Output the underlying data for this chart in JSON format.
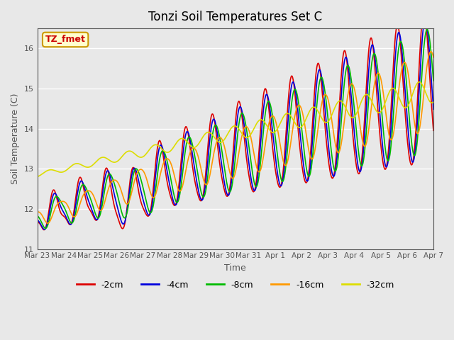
{
  "title": "Tonzi Soil Temperatures Set C",
  "xlabel": "Time",
  "ylabel": "Soil Temperature (C)",
  "ylim": [
    11.0,
    16.5
  ],
  "background_color": "#e8e8e8",
  "plot_bg_color": "#e8e8e8",
  "legend_label": "TZ_fmet",
  "legend_box_color": "#ffffcc",
  "legend_box_edge": "#cc9900",
  "legend_text_color": "#cc0000",
  "series_colors": [
    "#dd0000",
    "#0000dd",
    "#00bb00",
    "#ff9900",
    "#dddd00"
  ],
  "series_labels": [
    "-2cm",
    "-4cm",
    "-8cm",
    "-16cm",
    "-32cm"
  ],
  "xtick_labels": [
    "Mar 23",
    "Mar 24",
    "Mar 25",
    "Mar 26",
    "Mar 27",
    "Mar 28",
    "Mar 29",
    "Mar 30",
    "Mar 31",
    "Apr 1",
    "Apr 2",
    "Apr 3",
    "Apr 4",
    "Apr 5",
    "Apr 6",
    "Apr 7"
  ],
  "grid_color": "#ffffff",
  "tick_color": "#555555",
  "axis_color": "#555555"
}
